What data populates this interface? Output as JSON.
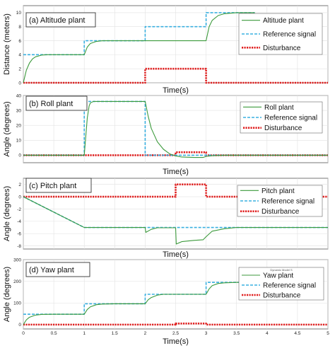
{
  "chart_data": [
    {
      "type": "line",
      "title": "(a) Altitude plant",
      "xlabel": "Time(s)",
      "ylabel": "Distance (meters)",
      "xlim": [
        0,
        5
      ],
      "ylim": [
        0,
        11
      ],
      "yticks": [
        0,
        2,
        4,
        6,
        8,
        10
      ],
      "xtick_labels_shown": false,
      "grid": true,
      "legend_position": "top-right",
      "series": [
        {
          "name": "Altitude plant",
          "color": "#3c9a3c",
          "style": "solid",
          "x": [
            0,
            0.05,
            0.1,
            0.15,
            0.2,
            0.3,
            0.4,
            0.5,
            0.7,
            1.0,
            1.05,
            1.1,
            1.2,
            1.3,
            1.5,
            2.0,
            2.5,
            2.95,
            3.0,
            3.05,
            3.1,
            3.2,
            3.3,
            3.5,
            3.8
          ],
          "y": [
            0,
            1.8,
            2.8,
            3.4,
            3.7,
            3.95,
            4.0,
            4.0,
            4.0,
            4.0,
            5.1,
            5.6,
            5.9,
            6.0,
            6.0,
            6.0,
            6.0,
            6.0,
            6.0,
            8.0,
            8.9,
            9.6,
            9.85,
            10.0,
            10.0
          ]
        },
        {
          "name": "Reference signal",
          "color": "#3ab0e0",
          "style": "dashed",
          "x": [
            0,
            1,
            1,
            2,
            2,
            3,
            3,
            3.8
          ],
          "y": [
            4,
            4,
            6,
            6,
            8,
            8,
            10,
            10
          ]
        },
        {
          "name": "Disturbance",
          "color": "#e02020",
          "style": "dotted",
          "x": [
            0,
            2,
            2,
            3,
            3,
            5
          ],
          "y": [
            0,
            0,
            2,
            2,
            0,
            0
          ]
        }
      ]
    },
    {
      "type": "line",
      "title": "(b) Roll plant",
      "xlabel": "Time(s)",
      "ylabel": "Angle (degrees)",
      "xlim": [
        0,
        5
      ],
      "ylim": [
        -5,
        40
      ],
      "yticks": [
        0,
        10,
        20,
        30,
        40
      ],
      "xtick_labels_shown": false,
      "grid": true,
      "legend_position": "top-right",
      "series": [
        {
          "name": "Roll plant",
          "color": "#3c9a3c",
          "style": "solid",
          "x": [
            0,
            1,
            1.02,
            1.05,
            1.08,
            1.1,
            1.15,
            1.2,
            2.0,
            2.05,
            2.1,
            2.2,
            2.3,
            2.4,
            2.5,
            2.6,
            2.8,
            2.95,
            3.0,
            3.1,
            3.3,
            3.5,
            5
          ],
          "y": [
            0,
            0,
            10,
            25,
            33,
            35,
            36,
            36,
            36,
            26,
            18,
            9,
            4,
            1,
            -0.5,
            -1.2,
            -1.5,
            -1.5,
            -0.8,
            -0.3,
            0,
            0,
            0
          ]
        },
        {
          "name": "Reference signal",
          "color": "#3ab0e0",
          "style": "dashed",
          "x": [
            0,
            1,
            1,
            2,
            2,
            5
          ],
          "y": [
            0,
            0,
            36,
            36,
            0,
            0
          ]
        },
        {
          "name": "Disturbance",
          "color": "#e02020",
          "style": "dotted",
          "x": [
            0,
            2.5,
            2.5,
            3,
            3,
            5
          ],
          "y": [
            0,
            0,
            2,
            2,
            0,
            0
          ]
        }
      ]
    },
    {
      "type": "line",
      "title": "(c) Pitch plant",
      "xlabel": "Time(s)",
      "ylabel": "Angle (degrees)",
      "xlim": [
        0,
        5
      ],
      "ylim": [
        -8.5,
        3
      ],
      "yticks": [
        2,
        0,
        -2,
        -4,
        -6,
        -8
      ],
      "xtick_labels_shown": false,
      "grid": true,
      "legend_position": "top-right",
      "series": [
        {
          "name": "Pitch plant",
          "color": "#3c9a3c",
          "style": "solid",
          "x": [
            0,
            1,
            2,
            2.01,
            2.1,
            2.2,
            2.5,
            2.51,
            2.6,
            2.8,
            2.95,
            3.0,
            3.1,
            3.3,
            3.5,
            5
          ],
          "y": [
            0,
            -5,
            -5,
            -5.8,
            -5.3,
            -5.05,
            -5.05,
            -7.7,
            -7.3,
            -7.1,
            -7.0,
            -6.5,
            -5.6,
            -5.2,
            -5.0,
            -5.0
          ]
        },
        {
          "name": "Reference signal",
          "color": "#3ab0e0",
          "style": "dashed",
          "x": [
            0,
            1,
            5
          ],
          "y": [
            0,
            -5,
            -5
          ]
        },
        {
          "name": "Disturbance",
          "color": "#e02020",
          "style": "dotted",
          "x": [
            0,
            2.5,
            2.5,
            3,
            3,
            5
          ],
          "y": [
            0,
            0,
            2,
            2,
            0,
            0
          ]
        }
      ]
    },
    {
      "type": "line",
      "title": "(d) Yaw plant",
      "xlabel": "Time(s)",
      "ylabel": "Angle (degrees)",
      "xlim": [
        0,
        5
      ],
      "ylim": [
        -20,
        300
      ],
      "yticks": [
        0,
        100,
        200,
        300
      ],
      "xticks": [
        0,
        0.5,
        1,
        1.5,
        2,
        2.5,
        3,
        3.5,
        4,
        4.5,
        5
      ],
      "grid": true,
      "legend_position": "top-right",
      "legend_caption": "Dynamic Model S",
      "series": [
        {
          "name": "Yaw plant",
          "color": "#3c9a3c",
          "style": "solid",
          "x": [
            0,
            0.05,
            0.1,
            0.2,
            0.3,
            0.5,
            1.0,
            1.05,
            1.1,
            1.2,
            1.3,
            1.5,
            2.0,
            2.05,
            2.1,
            2.2,
            2.3,
            2.5,
            3.0,
            3.05,
            3.1,
            3.2,
            3.3,
            3.5,
            3.8
          ],
          "y": [
            0,
            22,
            34,
            44,
            47,
            48,
            48,
            70,
            82,
            92,
            95,
            96,
            96,
            115,
            125,
            136,
            140,
            140,
            140,
            165,
            180,
            190,
            193,
            195,
            195
          ]
        },
        {
          "name": "Reference signal",
          "color": "#3ab0e0",
          "style": "dashed",
          "x": [
            0,
            1,
            1,
            2,
            2,
            3,
            3,
            3.8
          ],
          "y": [
            48,
            48,
            96,
            96,
            140,
            140,
            195,
            195
          ]
        },
        {
          "name": "Disturbance",
          "color": "#e02020",
          "style": "dotted",
          "x": [
            0,
            2.5,
            2.5,
            3,
            3,
            5
          ],
          "y": [
            0,
            0,
            5,
            5,
            0,
            0
          ]
        }
      ]
    }
  ]
}
